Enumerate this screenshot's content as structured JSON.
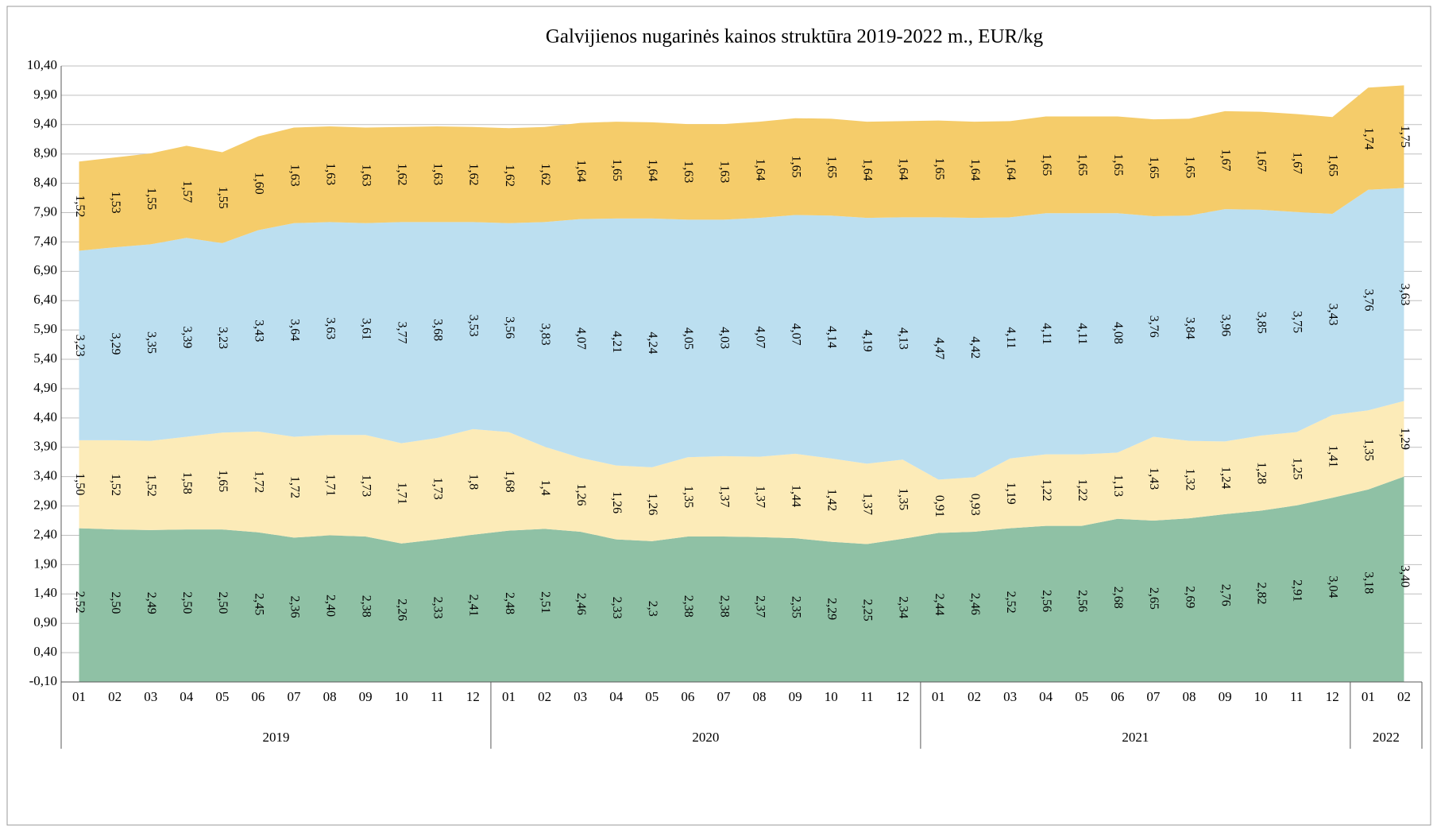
{
  "chart_data": {
    "type": "stacked-area",
    "title": "Galvijienos nugarinės kainos struktūra 2019-2022 m., EUR/kg",
    "groups": [
      {
        "label": "2019",
        "categories": [
          "01",
          "02",
          "03",
          "04",
          "05",
          "06",
          "07",
          "08",
          "09",
          "10",
          "11",
          "12"
        ]
      },
      {
        "label": "2020",
        "categories": [
          "01",
          "02",
          "03",
          "04",
          "05",
          "06",
          "07",
          "08",
          "09",
          "10",
          "11",
          "12"
        ]
      },
      {
        "label": "2021",
        "categories": [
          "01",
          "02",
          "03",
          "04",
          "05",
          "06",
          "07",
          "08",
          "09",
          "10",
          "11",
          "12"
        ]
      },
      {
        "label": "2022",
        "categories": [
          "01",
          "02"
        ]
      }
    ],
    "ylim": [
      -0.1,
      10.4
    ],
    "yticks": [
      {
        "value": -0.1,
        "label": "-0,10"
      },
      {
        "value": 0.4,
        "label": "0,40"
      },
      {
        "value": 0.9,
        "label": "0,90"
      },
      {
        "value": 1.4,
        "label": "1,40"
      },
      {
        "value": 1.9,
        "label": "1,90"
      },
      {
        "value": 2.4,
        "label": "2,40"
      },
      {
        "value": 2.9,
        "label": "2,90"
      },
      {
        "value": 3.4,
        "label": "3,40"
      },
      {
        "value": 3.9,
        "label": "3,90"
      },
      {
        "value": 4.4,
        "label": "4,40"
      },
      {
        "value": 4.9,
        "label": "4,90"
      },
      {
        "value": 5.4,
        "label": "5,40"
      },
      {
        "value": 5.9,
        "label": "5,90"
      },
      {
        "value": 6.4,
        "label": "6,40"
      },
      {
        "value": 6.9,
        "label": "6,90"
      },
      {
        "value": 7.4,
        "label": "7,40"
      },
      {
        "value": 7.9,
        "label": "7,90"
      },
      {
        "value": 8.4,
        "label": "8,40"
      },
      {
        "value": 8.9,
        "label": "8,90"
      },
      {
        "value": 9.4,
        "label": "9,40"
      },
      {
        "value": 9.9,
        "label": "9,90"
      },
      {
        "value": 10.4,
        "label": "10,40"
      }
    ],
    "grid": true,
    "series": [
      {
        "color": "#8fc1a5",
        "values": [
          2.52,
          2.5,
          2.49,
          2.5,
          2.5,
          2.45,
          2.36,
          2.4,
          2.38,
          2.26,
          2.33,
          2.41,
          2.48,
          2.51,
          2.46,
          2.33,
          2.3,
          2.38,
          2.38,
          2.37,
          2.35,
          2.29,
          2.25,
          2.34,
          2.44,
          2.46,
          2.52,
          2.56,
          2.56,
          2.68,
          2.65,
          2.69,
          2.76,
          2.82,
          2.91,
          3.04,
          3.18,
          3.4
        ],
        "value_labels": [
          "2,52",
          "2,50",
          "2,49",
          "2,50",
          "2,50",
          "2,45",
          "2,36",
          "2,40",
          "2,38",
          "2,26",
          "2,33",
          "2,41",
          "2,48",
          "2,51",
          "2,46",
          "2,33",
          "2,3",
          "2,38",
          "2,38",
          "2,37",
          "2,35",
          "2,29",
          "2,25",
          "2,34",
          "2,44",
          "2,46",
          "2,52",
          "2,56",
          "2,56",
          "2,68",
          "2,65",
          "2,69",
          "2,76",
          "2,82",
          "2,91",
          "3,04",
          "3,18",
          "3,40"
        ]
      },
      {
        "color": "#fcebb8",
        "values": [
          1.5,
          1.52,
          1.52,
          1.58,
          1.65,
          1.72,
          1.72,
          1.71,
          1.73,
          1.71,
          1.73,
          1.8,
          1.68,
          1.4,
          1.26,
          1.26,
          1.26,
          1.35,
          1.37,
          1.37,
          1.44,
          1.42,
          1.37,
          1.35,
          0.91,
          0.93,
          1.19,
          1.22,
          1.22,
          1.13,
          1.43,
          1.32,
          1.24,
          1.28,
          1.25,
          1.41,
          1.35,
          1.29
        ],
        "value_labels": [
          "1,50",
          "1,52",
          "1,52",
          "1,58",
          "1,65",
          "1,72",
          "1,72",
          "1,71",
          "1,73",
          "1,71",
          "1,73",
          "1,8",
          "1,68",
          "1,4",
          "1,26",
          "1,26",
          "1,26",
          "1,35",
          "1,37",
          "1,37",
          "1,44",
          "1,42",
          "1,37",
          "1,35",
          "0,91",
          "0,93",
          "1,19",
          "1,22",
          "1,22",
          "1,13",
          "1,43",
          "1,32",
          "1,24",
          "1,28",
          "1,25",
          "1,41",
          "1,35",
          "1,29"
        ]
      },
      {
        "color": "#bcdff0",
        "values": [
          3.23,
          3.29,
          3.35,
          3.39,
          3.23,
          3.43,
          3.64,
          3.63,
          3.61,
          3.77,
          3.68,
          3.53,
          3.56,
          3.83,
          4.07,
          4.21,
          4.24,
          4.05,
          4.03,
          4.07,
          4.07,
          4.14,
          4.19,
          4.13,
          4.47,
          4.42,
          4.11,
          4.11,
          4.11,
          4.08,
          3.76,
          3.84,
          3.96,
          3.85,
          3.75,
          3.43,
          3.76,
          3.63
        ],
        "value_labels": [
          "3,23",
          "3,29",
          "3,35",
          "3,39",
          "3,23",
          "3,43",
          "3,64",
          "3,63",
          "3,61",
          "3,77",
          "3,68",
          "3,53",
          "3,56",
          "3,83",
          "4,07",
          "4,21",
          "4,24",
          "4,05",
          "4,03",
          "4,07",
          "4,07",
          "4,14",
          "4,19",
          "4,13",
          "4,47",
          "4,42",
          "4,11",
          "4,11",
          "4,11",
          "4,08",
          "3,76",
          "3,84",
          "3,96",
          "3,85",
          "3,75",
          "3,43",
          "3,76",
          "3,63"
        ]
      },
      {
        "color": "#f5cc6a",
        "values": [
          1.52,
          1.53,
          1.55,
          1.57,
          1.55,
          1.6,
          1.63,
          1.63,
          1.63,
          1.62,
          1.63,
          1.62,
          1.62,
          1.62,
          1.64,
          1.65,
          1.64,
          1.63,
          1.63,
          1.64,
          1.65,
          1.65,
          1.64,
          1.64,
          1.65,
          1.64,
          1.64,
          1.65,
          1.65,
          1.65,
          1.65,
          1.65,
          1.67,
          1.67,
          1.67,
          1.65,
          1.74,
          1.75
        ],
        "value_labels": [
          "1,52",
          "1,53",
          "1,55",
          "1,57",
          "1,55",
          "1,60",
          "1,63",
          "1,63",
          "1,63",
          "1,62",
          "1,63",
          "1,62",
          "1,62",
          "1,62",
          "1,64",
          "1,65",
          "1,64",
          "1,63",
          "1,63",
          "1,64",
          "1,65",
          "1,65",
          "1,64",
          "1,64",
          "1,65",
          "1,64",
          "1,64",
          "1,65",
          "1,65",
          "1,65",
          "1,65",
          "1,65",
          "1,67",
          "1,67",
          "1,67",
          "1,65",
          "1,74",
          "1,75"
        ]
      }
    ]
  }
}
